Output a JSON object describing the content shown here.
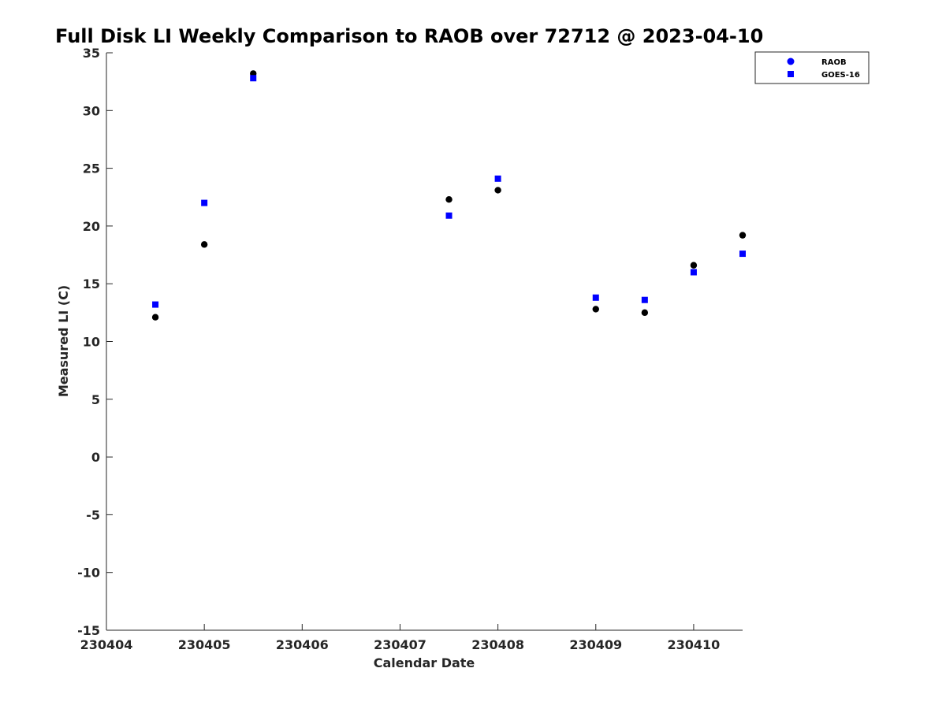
{
  "chart_data": {
    "type": "scatter",
    "title": "Full Disk LI Weekly Comparison to RAOB over 72712 @ 2023-04-10",
    "xlabel": "Calendar Date",
    "ylabel": "Measured LI (C)",
    "xlim": [
      230404,
      230410.5
    ],
    "ylim": [
      -15,
      35
    ],
    "x_ticks": [
      230404,
      230405,
      230406,
      230407,
      230408,
      230409,
      230410
    ],
    "x_tick_labels": [
      "230404",
      "230405",
      "230406",
      "230407",
      "230408",
      "230409",
      "230410"
    ],
    "y_ticks": [
      -15,
      -10,
      -5,
      0,
      5,
      10,
      15,
      20,
      25,
      30,
      35
    ],
    "y_tick_labels": [
      "-15",
      "-10",
      "-5",
      "0",
      "5",
      "10",
      "15",
      "20",
      "25",
      "30",
      "35"
    ],
    "grid": false,
    "legend_position": "top-right",
    "series": [
      {
        "name": "RAOB",
        "marker": "circle",
        "color": "#000000",
        "legend_color": "#0000ff",
        "x": [
          230404.5,
          230405,
          230405.5,
          230407.5,
          230408,
          230409,
          230409.5,
          230410,
          230410.5
        ],
        "y": [
          12.1,
          18.4,
          33.2,
          22.3,
          23.1,
          12.8,
          12.5,
          16.6,
          19.2
        ]
      },
      {
        "name": "GOES-16",
        "marker": "square",
        "color": "#0000ff",
        "legend_color": "#0000ff",
        "x": [
          230404.5,
          230405,
          230405.5,
          230407.5,
          230408,
          230409,
          230409.5,
          230410,
          230410.5
        ],
        "y": [
          13.2,
          22.0,
          32.8,
          20.9,
          24.1,
          13.8,
          13.6,
          16.0,
          17.6
        ]
      }
    ]
  }
}
